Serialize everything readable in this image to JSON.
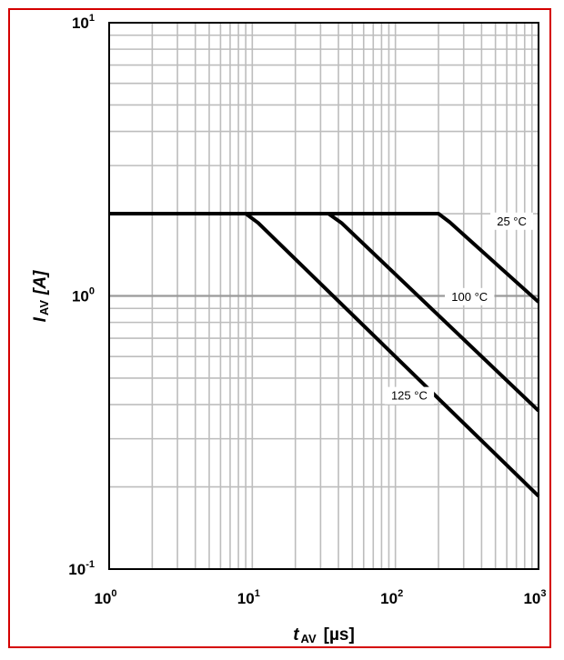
{
  "chart_data": {
    "type": "line",
    "title": "",
    "xlabel": {
      "symbol": "t",
      "subscript": "AV",
      "unit": "[µs]"
    },
    "ylabel": {
      "symbol": "I",
      "subscript": "AV",
      "unit": "[A]"
    },
    "x_scale": "log",
    "y_scale": "log",
    "xlim": [
      1,
      1000
    ],
    "ylim": [
      0.1,
      10
    ],
    "grid": true,
    "x_ticks": [
      {
        "base": "10",
        "exp": "0",
        "value": 1
      },
      {
        "base": "10",
        "exp": "1",
        "value": 10
      },
      {
        "base": "10",
        "exp": "2",
        "value": 100
      },
      {
        "base": "10",
        "exp": "3",
        "value": 1000
      }
    ],
    "y_ticks": [
      {
        "base": "10",
        "exp": "-1",
        "value": 0.1
      },
      {
        "base": "10",
        "exp": "0",
        "value": 1
      },
      {
        "base": "10",
        "exp": "1",
        "value": 10
      }
    ],
    "series": [
      {
        "name": "25 °C",
        "label_pos": [
          650,
          1.87
        ],
        "points": [
          [
            1,
            2.0
          ],
          [
            200,
            2.0
          ],
          [
            240,
            1.86
          ],
          [
            1000,
            0.95
          ]
        ]
      },
      {
        "name": "100 °C",
        "label_pos": [
          330,
          0.99
        ],
        "points": [
          [
            1,
            2.0
          ],
          [
            34,
            2.0
          ],
          [
            42,
            1.85
          ],
          [
            1000,
            0.38
          ]
        ]
      },
      {
        "name": "125 °C",
        "label_pos": [
          125,
          0.43
        ],
        "points": [
          [
            1,
            2.0
          ],
          [
            9,
            2.0
          ],
          [
            11,
            1.85
          ],
          [
            1000,
            0.185
          ]
        ]
      }
    ]
  }
}
